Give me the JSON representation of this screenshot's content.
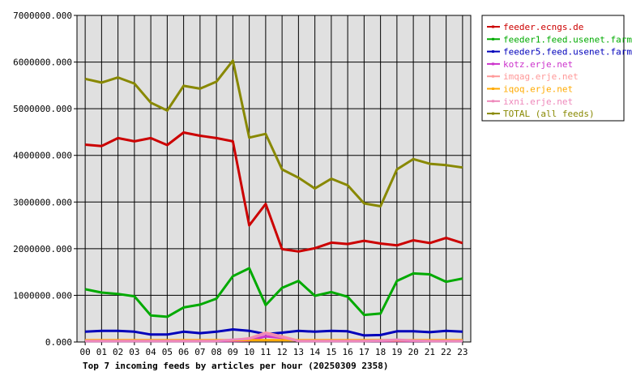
{
  "chart_data": {
    "type": "line",
    "title": "Top 7 incoming feeds by articles per hour (20250309 2358)",
    "xlabel": "",
    "ylabel": "",
    "ylim": [
      0,
      7000000
    ],
    "yticks": [
      "0.000",
      "1000000.000",
      "2000000.000",
      "3000000.000",
      "4000000.000",
      "5000000.000",
      "6000000.000",
      "7000000.000"
    ],
    "grid": true,
    "legend_position": "top-right",
    "categories": [
      "00",
      "01",
      "02",
      "03",
      "04",
      "05",
      "06",
      "07",
      "08",
      "09",
      "10",
      "11",
      "12",
      "13",
      "14",
      "15",
      "16",
      "17",
      "18",
      "19",
      "20",
      "21",
      "22",
      "23"
    ],
    "series": [
      {
        "name": "feeder.ecngs.de",
        "color": "#cc0000",
        "values": [
          4230000,
          4200000,
          4370000,
          4300000,
          4370000,
          4220000,
          4490000,
          4420000,
          4370000,
          4300000,
          2500000,
          2960000,
          1990000,
          1940000,
          2010000,
          2130000,
          2100000,
          2170000,
          2110000,
          2070000,
          2180000,
          2120000,
          2230000,
          2120000
        ]
      },
      {
        "name": "feeder1.feed.usenet.farm",
        "color": "#00aa00",
        "values": [
          1130000,
          1060000,
          1030000,
          980000,
          570000,
          540000,
          740000,
          800000,
          930000,
          1410000,
          1580000,
          790000,
          1160000,
          1310000,
          990000,
          1070000,
          970000,
          580000,
          610000,
          1310000,
          1470000,
          1450000,
          1290000,
          1360000
        ]
      },
      {
        "name": "feeder5.feed.usenet.farm",
        "color": "#0000bb",
        "values": [
          220000,
          240000,
          240000,
          220000,
          160000,
          160000,
          220000,
          190000,
          220000,
          270000,
          240000,
          170000,
          200000,
          240000,
          220000,
          240000,
          230000,
          140000,
          150000,
          230000,
          230000,
          210000,
          240000,
          220000
        ]
      },
      {
        "name": "kotz.erje.net",
        "color": "#cc33cc",
        "values": [
          20000,
          20000,
          20000,
          20000,
          20000,
          20000,
          20000,
          20000,
          20000,
          20000,
          30000,
          120000,
          90000,
          20000,
          20000,
          20000,
          20000,
          20000,
          20000,
          20000,
          20000,
          20000,
          20000,
          20000
        ]
      },
      {
        "name": "imqag.erje.net",
        "color": "#ff9999",
        "values": [
          30000,
          30000,
          30000,
          30000,
          30000,
          30000,
          30000,
          30000,
          30000,
          40000,
          80000,
          200000,
          120000,
          30000,
          30000,
          30000,
          30000,
          30000,
          30000,
          40000,
          30000,
          30000,
          30000,
          30000
        ]
      },
      {
        "name": "iqoq.erje.net",
        "color": "#ffaa00",
        "values": [
          40000,
          40000,
          40000,
          40000,
          40000,
          40000,
          40000,
          40000,
          40000,
          40000,
          40000,
          40000,
          40000,
          40000,
          40000,
          40000,
          40000,
          40000,
          40000,
          40000,
          40000,
          40000,
          40000,
          40000
        ]
      },
      {
        "name": "ixni.erje.net",
        "color": "#ee88bb",
        "values": [
          20000,
          20000,
          20000,
          20000,
          20000,
          20000,
          20000,
          20000,
          20000,
          50000,
          70000,
          180000,
          100000,
          20000,
          20000,
          20000,
          20000,
          20000,
          30000,
          50000,
          30000,
          20000,
          20000,
          20000
        ]
      },
      {
        "name": "TOTAL (all feeds)",
        "color": "#888800",
        "values": [
          5640000,
          5560000,
          5670000,
          5540000,
          5130000,
          4960000,
          5490000,
          5430000,
          5580000,
          6030000,
          4380000,
          4460000,
          3700000,
          3520000,
          3290000,
          3500000,
          3360000,
          2970000,
          2910000,
          3700000,
          3920000,
          3820000,
          3790000,
          3740000
        ]
      }
    ]
  }
}
